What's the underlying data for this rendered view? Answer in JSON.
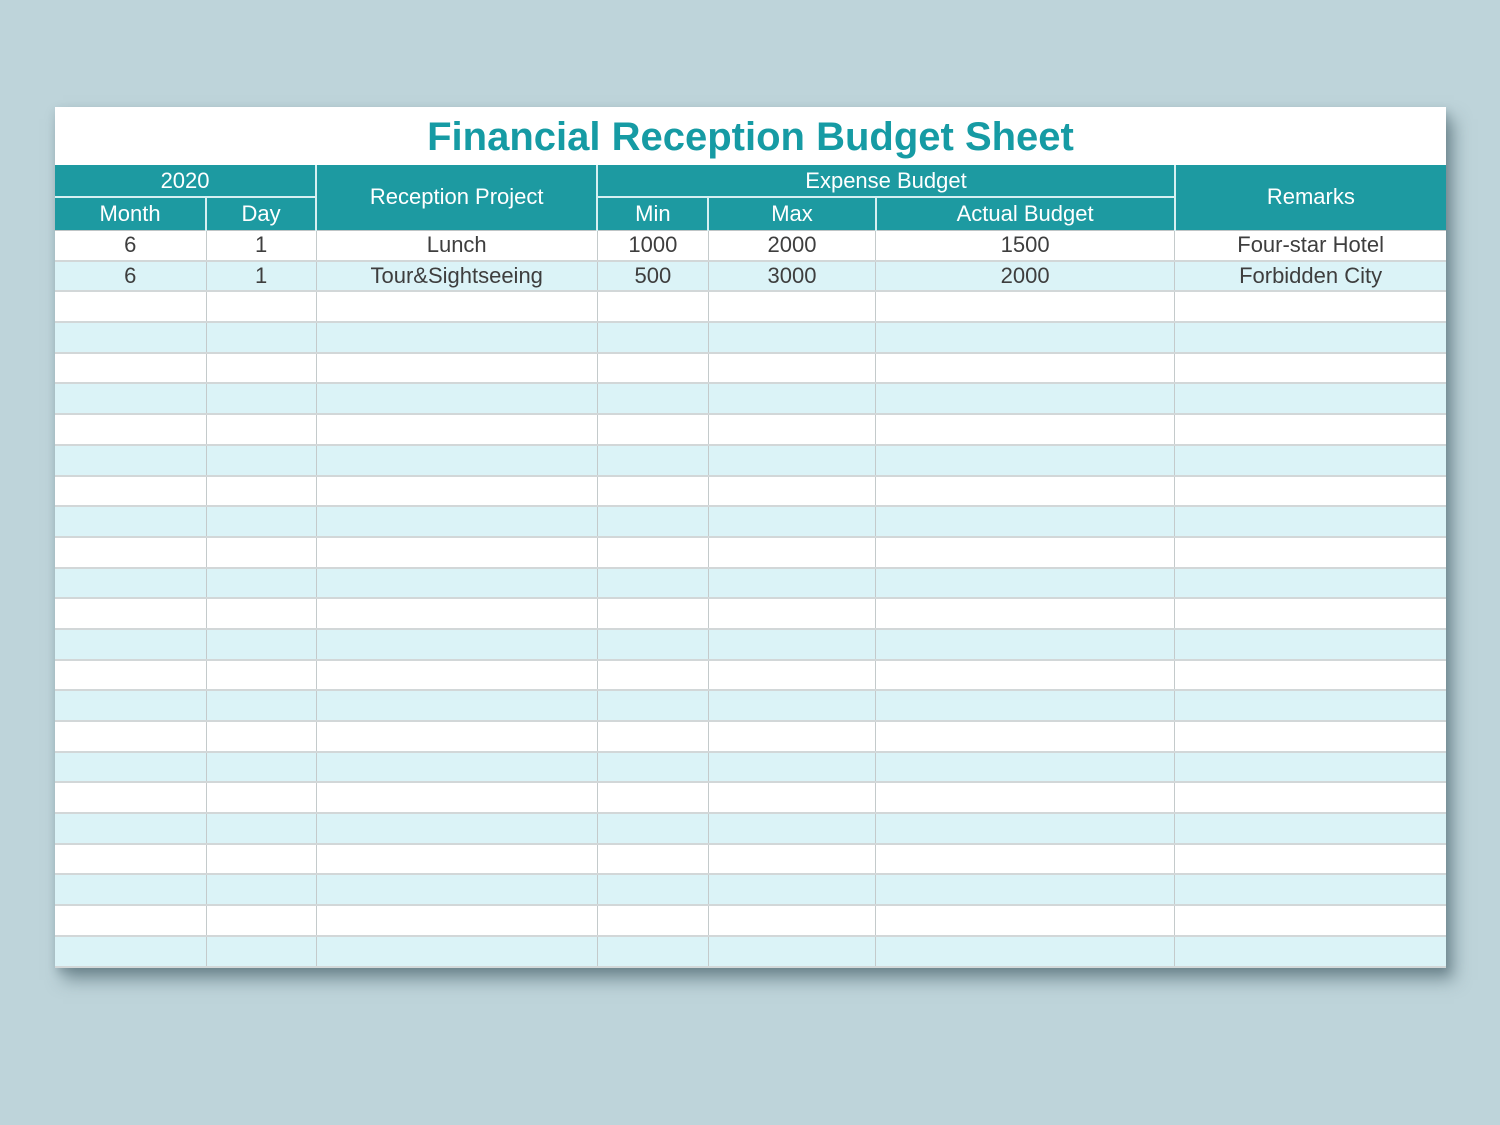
{
  "sheet": {
    "title": "Financial Reception Budget Sheet",
    "header": {
      "year": "2020",
      "month": "Month",
      "day": "Day",
      "reception_project": "Reception Project",
      "expense_budget": "Expense Budget",
      "min": "Min",
      "max": "Max",
      "actual_budget": "Actual Budget",
      "remarks": "Remarks"
    },
    "rows": [
      {
        "month": "6",
        "day": "1",
        "project": "Lunch",
        "min": "1000",
        "max": "2000",
        "actual": "1500",
        "remarks": "Four-star Hotel"
      },
      {
        "month": "6",
        "day": "1",
        "project": "Tour&Sightseeing",
        "min": "500",
        "max": "3000",
        "actual": "2000",
        "remarks": "Forbidden City"
      }
    ],
    "empty_row_count": 22,
    "colors": {
      "header_bg": "#1d9aa1",
      "title_color": "#169ba4",
      "row_alt_bg": "#dbf3f7",
      "row_bg": "#ffffff",
      "grid_line": "#c4cacb",
      "page_bg": "#bed4da",
      "header_text": "#ffffff",
      "cell_text": "#3e3e3e"
    }
  }
}
